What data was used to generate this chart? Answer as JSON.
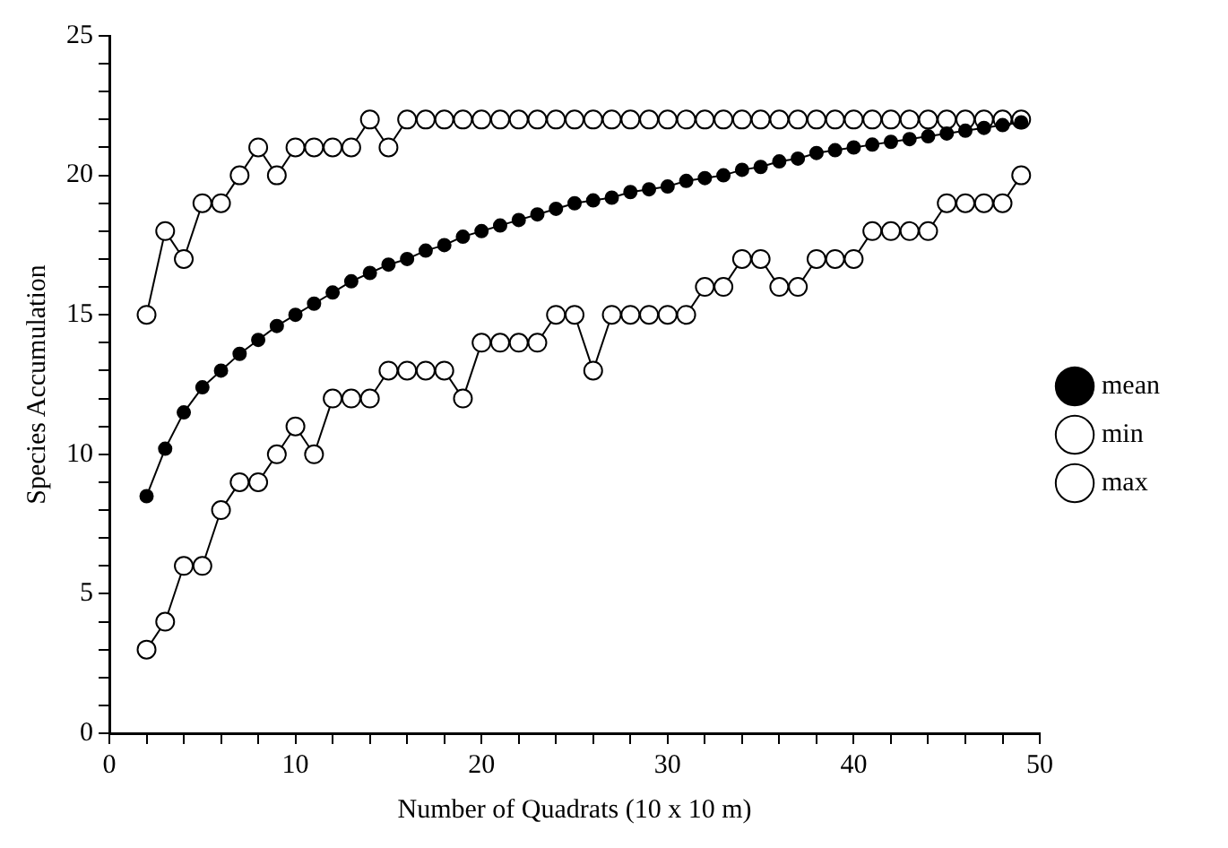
{
  "chart_data": {
    "type": "line",
    "xlabel": "Number of Quadrats (10 x 10 m)",
    "ylabel": "Species Accumulation",
    "x": [
      2,
      3,
      4,
      5,
      6,
      7,
      8,
      9,
      10,
      11,
      12,
      13,
      14,
      15,
      16,
      17,
      18,
      19,
      20,
      21,
      22,
      23,
      24,
      25,
      26,
      27,
      28,
      29,
      30,
      31,
      32,
      33,
      34,
      35,
      36,
      37,
      38,
      39,
      40,
      41,
      42,
      43,
      44,
      45,
      46,
      47,
      48,
      49
    ],
    "series": [
      {
        "name": "mean",
        "color": "#000000",
        "values": [
          8.5,
          10.2,
          11.5,
          12.4,
          13,
          13.6,
          14.1,
          14.6,
          15,
          15.4,
          15.8,
          16.2,
          16.5,
          16.8,
          17,
          17.3,
          17.5,
          17.8,
          18,
          18.2,
          18.4,
          18.6,
          18.8,
          19,
          19.1,
          19.2,
          19.4,
          19.5,
          19.6,
          19.8,
          19.9,
          20,
          20.2,
          20.3,
          20.5,
          20.6,
          20.8,
          20.9,
          21,
          21.1,
          21.2,
          21.3,
          21.4,
          21.5,
          21.6,
          21.7,
          21.8,
          21.9
        ]
      },
      {
        "name": "min",
        "color": "#000000",
        "values": [
          3,
          4,
          6,
          6,
          8,
          9,
          9,
          10,
          11,
          10,
          12,
          12,
          12,
          13,
          13,
          13,
          13,
          12,
          14,
          14,
          14,
          14,
          15,
          15,
          13,
          15,
          15,
          15,
          15,
          15,
          16,
          16,
          17,
          17,
          16,
          16,
          17,
          17,
          17,
          18,
          18,
          18,
          18,
          19,
          19,
          19,
          19,
          20
        ]
      },
      {
        "name": "max",
        "color": "#000000",
        "values": [
          15,
          18,
          17,
          19,
          19,
          20,
          21,
          20,
          21,
          21,
          21,
          21,
          22,
          21,
          22,
          22,
          22,
          22,
          22,
          22,
          22,
          22,
          22,
          22,
          22,
          22,
          22,
          22,
          22,
          22,
          22,
          22,
          22,
          22,
          22,
          22,
          22,
          22,
          22,
          22,
          22,
          22,
          22,
          22,
          22,
          22,
          22,
          22
        ]
      }
    ],
    "xlim": [
      0,
      50
    ],
    "xticks": [
      0,
      {
        "value": 2,
        "label": null
      },
      {
        "value": 4,
        "label": null
      },
      {
        "value": 6,
        "label": null
      },
      {
        "value": 8,
        "label": null
      },
      10,
      {
        "value": 12,
        "label": null
      },
      {
        "value": 14,
        "label": null
      },
      {
        "value": 16,
        "label": null
      },
      {
        "value": 18,
        "label": null
      },
      20,
      {
        "value": 22,
        "label": null
      },
      {
        "value": 24,
        "label": null
      },
      {
        "value": 26,
        "label": null
      },
      {
        "value": 28,
        "label": null
      },
      30,
      {
        "value": 32,
        "label": null
      },
      {
        "value": 34,
        "label": null
      },
      {
        "value": 36,
        "label": null
      },
      {
        "value": 38,
        "label": null
      },
      40,
      {
        "value": 42,
        "label": null
      },
      {
        "value": 44,
        "label": null
      },
      {
        "value": 46,
        "label": null
      },
      {
        "value": 48,
        "label": null
      },
      50
    ],
    "ylim": [
      0,
      25
    ],
    "yticks": [
      0,
      {
        "value": 1,
        "label": null
      },
      {
        "value": 2,
        "label": null
      },
      {
        "value": 3,
        "label": null
      },
      {
        "value": 4,
        "label": null
      },
      5,
      {
        "value": 6,
        "label": null
      },
      {
        "value": 7,
        "label": null
      },
      {
        "value": 8,
        "label": null
      },
      {
        "value": 9,
        "label": null
      },
      10,
      {
        "value": 11,
        "label": null
      },
      {
        "value": 12,
        "label": null
      },
      {
        "value": 13,
        "label": null
      },
      {
        "value": 14,
        "label": null
      },
      15,
      {
        "value": 16,
        "label": null
      },
      {
        "value": 17,
        "label": null
      },
      {
        "value": 18,
        "label": null
      },
      {
        "value": 19,
        "label": null
      },
      20,
      {
        "value": 21,
        "label": null
      },
      {
        "value": 22,
        "label": null
      },
      {
        "value": 23,
        "label": null
      },
      {
        "value": 24,
        "label": null
      },
      25
    ],
    "grid": false,
    "legend": "right",
    "marker": "circle",
    "line_style": "solid"
  }
}
